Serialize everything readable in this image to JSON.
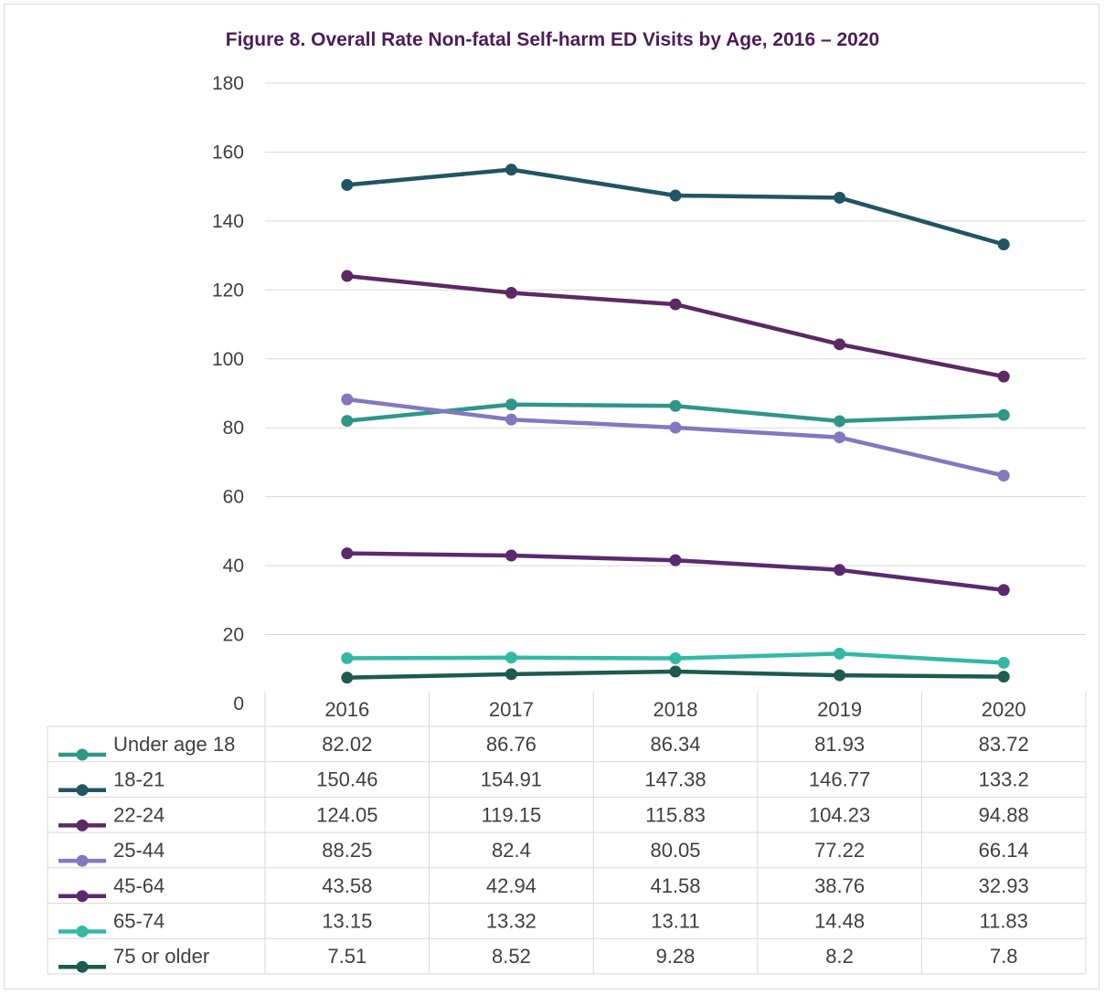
{
  "chart_data": {
    "type": "line",
    "title": "Figure 8. Overall Rate Non-fatal Self-harm ED Visits by Age, 2016 – 2020",
    "xlabel": "",
    "ylabel": "",
    "ylim": [
      0,
      180
    ],
    "yticks": [
      "0",
      "20",
      "40",
      "60",
      "80",
      "100",
      "120",
      "140",
      "160",
      "180"
    ],
    "grid": true,
    "legend": "data-table",
    "categories": [
      "2016",
      "2017",
      "2018",
      "2019",
      "2020"
    ],
    "series": [
      {
        "name": "Under age 18",
        "color": "#2f9688",
        "values": [
          82.02,
          86.76,
          86.34,
          81.93,
          83.72
        ],
        "labels": [
          "82.02",
          "86.76",
          "86.34",
          "81.93",
          "83.72"
        ]
      },
      {
        "name": "18-21",
        "color": "#215563",
        "values": [
          150.46,
          154.91,
          147.38,
          146.77,
          133.2
        ],
        "labels": [
          "150.46",
          "154.91",
          "147.38",
          "146.77",
          "133.2"
        ]
      },
      {
        "name": "22-24",
        "color": "#5b2a63",
        "values": [
          124.05,
          119.15,
          115.83,
          104.23,
          94.88
        ],
        "labels": [
          "124.05",
          "119.15",
          "115.83",
          "104.23",
          "94.88"
        ]
      },
      {
        "name": "25-44",
        "color": "#8378bf",
        "values": [
          88.25,
          82.4,
          80.05,
          77.22,
          66.14
        ],
        "labels": [
          "88.25",
          "82.4",
          "80.05",
          "77.22",
          "66.14"
        ]
      },
      {
        "name": "45-64",
        "color": "#5a2a6f",
        "values": [
          43.58,
          42.94,
          41.58,
          38.76,
          32.93
        ],
        "labels": [
          "43.58",
          "42.94",
          "41.58",
          "38.76",
          "32.93"
        ]
      },
      {
        "name": "65-74",
        "color": "#33b8a6",
        "values": [
          13.15,
          13.32,
          13.11,
          14.48,
          11.83
        ],
        "labels": [
          "13.15",
          "13.32",
          "13.11",
          "14.48",
          "11.83"
        ]
      },
      {
        "name": "75 or older",
        "color": "#1e5a4e",
        "values": [
          7.51,
          8.52,
          9.28,
          8.2,
          7.8
        ],
        "labels": [
          "7.51",
          "8.52",
          "9.28",
          "8.2",
          "7.8"
        ]
      }
    ]
  }
}
